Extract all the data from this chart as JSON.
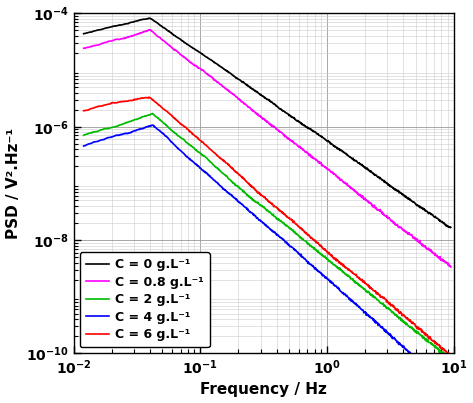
{
  "xlabel": "Frequency / Hz",
  "ylabel": "PSD / V².Hz⁻¹",
  "xlim": [
    0.01,
    10
  ],
  "ylim": [
    1e-10,
    0.0001
  ],
  "legend_labels": [
    "C = 0 g.L⁻¹",
    "C = 0.8 g.L⁻¹",
    "C = 2 g.L⁻¹",
    "C = 4 g.L⁻¹",
    "C = 6 g.L⁻¹"
  ],
  "colors": [
    "black",
    "#FF00FF",
    "#00BB00",
    "blue",
    "red"
  ],
  "background_color": "#ffffff",
  "curve_params": [
    {
      "peak_freq": 0.04,
      "peak_val": 8e-05,
      "rise": 0.5,
      "slope": -1.55,
      "noise": 0.08,
      "seed": 10
    },
    {
      "peak_freq": 0.04,
      "peak_val": 5e-05,
      "rise": 0.6,
      "slope": -1.75,
      "noise": 0.12,
      "seed": 20
    },
    {
      "peak_freq": 0.042,
      "peak_val": 1.7e-06,
      "rise": 0.7,
      "slope": -1.85,
      "noise": 0.12,
      "seed": 30
    },
    {
      "peak_freq": 0.042,
      "peak_val": 1.1e-06,
      "rise": 0.7,
      "slope": -2.0,
      "noise": 0.12,
      "seed": 40
    },
    {
      "peak_freq": 0.04,
      "peak_val": 3.5e-06,
      "rise": 0.5,
      "slope": -1.92,
      "noise": 0.12,
      "seed": 50
    }
  ]
}
